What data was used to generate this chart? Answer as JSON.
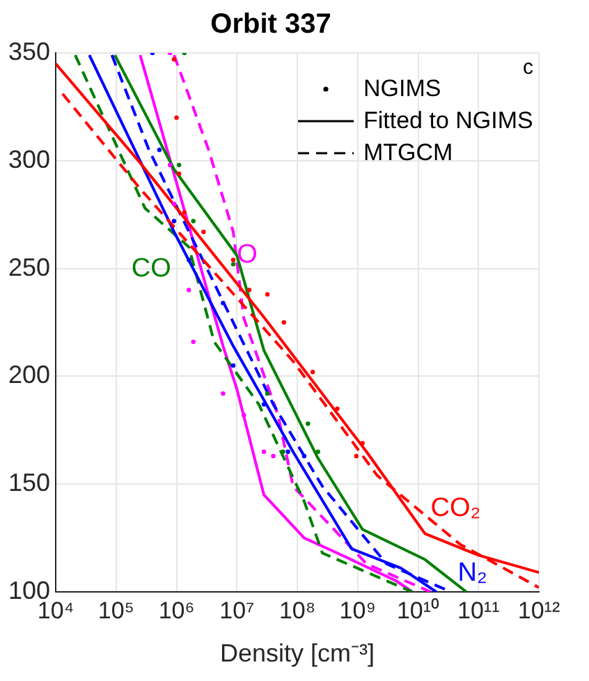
{
  "chart_data": {
    "type": "line",
    "title": "Orbit 337",
    "xlabel": "Density [cm⁻³]",
    "log": "x",
    "grid": true,
    "xlim": [
      10000,
      1000000000000
    ],
    "xticks": [
      {
        "value": 10000,
        "label": "10⁴"
      },
      {
        "value": 100000,
        "label": "10⁵"
      },
      {
        "value": 1000000,
        "label": "10⁶"
      },
      {
        "value": 10000000,
        "label": "10⁷"
      },
      {
        "value": 100000000,
        "label": "10⁸"
      },
      {
        "value": 1000000000,
        "label": "10⁹"
      },
      {
        "value": 10000000000,
        "label": "10¹⁰"
      },
      {
        "value": 100000000000,
        "label": "10¹¹"
      },
      {
        "value": 1000000000000,
        "label": "10¹²"
      }
    ],
    "ylim": [
      100,
      350
    ],
    "yticks": [
      100,
      150,
      200,
      250,
      300,
      350
    ],
    "series": [
      {
        "type": "scatter",
        "marker": "circle",
        "color": "#ff0000",
        "x": [
          910000.0,
          1000000.0,
          1100000.0,
          1350000.0,
          2800000.0,
          8700000.0,
          16000000.0,
          32000000.0,
          60000000.0,
          180000000.0,
          460000000.0,
          1200000000.0,
          950000000.0
        ],
        "values": [
          347,
          320,
          294,
          276,
          267,
          254,
          240,
          238,
          225,
          202,
          185,
          169,
          163
        ]
      },
      {
        "type": "line",
        "line_style": "solid",
        "color": "#ff0000",
        "x": [
          10000.0,
          250000.0,
          27000000.0,
          1400000000.0,
          13000000000.0,
          100000000000.0,
          1000000000000.0
        ],
        "values": [
          345,
          299,
          228,
          165,
          127,
          117,
          109
        ]
      },
      {
        "type": "line",
        "line_style": "dashed",
        "color": "#ff0000",
        "x": [
          13000.0,
          250000.0,
          85000000.0,
          2100000000.0,
          50000000000.0,
          1000000000000.0
        ],
        "values": [
          331,
          287,
          207,
          154,
          122,
          102
        ]
      },
      {
        "type": "scatter",
        "marker": "circle",
        "color": "#0000ff",
        "x": [
          400000.0,
          520000.0,
          910000.0,
          1600000.0,
          5900000.0,
          8700000.0,
          28000000.0,
          70000000.0,
          130000000.0
        ],
        "values": [
          350,
          305,
          272,
          254,
          234,
          205,
          187,
          165,
          163
        ]
      },
      {
        "type": "line",
        "line_style": "solid",
        "color": "#0000ff",
        "x": [
          36000.0,
          910000.0,
          8700000.0,
          28000000.0,
          85000000.0,
          790000000.0,
          5200000000.0,
          20000000000.0
        ],
        "values": [
          349,
          267,
          214,
          189,
          165,
          120,
          111,
          100
        ]
      },
      {
        "type": "line",
        "line_style": "dashed",
        "color": "#0000ff",
        "x": [
          85000.0,
          350000.0,
          40000000.0,
          260000000.0,
          3000000000.0,
          35000000000.0
        ],
        "values": [
          349,
          305,
          187,
          149,
          113,
          100
        ]
      },
      {
        "type": "scatter",
        "marker": "circle",
        "color": "#008000",
        "x": [
          1350000.0,
          1100000.0,
          1900000.0,
          8700000.0,
          32000000.0,
          150000000.0,
          220000000.0,
          58000000.0
        ],
        "values": [
          350,
          298,
          272,
          252,
          192,
          178,
          165,
          165
        ]
      },
      {
        "type": "line",
        "line_style": "solid",
        "color": "#008000",
        "x": [
          95000.0,
          910000.0,
          10000000.0,
          28000000.0,
          220000000.0,
          1200000000.0,
          13000000000.0,
          63000000000.0
        ],
        "values": [
          349,
          296,
          256,
          212,
          162,
          129,
          115,
          100
        ]
      },
      {
        "type": "line",
        "line_style": "dashed",
        "color": "#008000",
        "x": [
          21000.0,
          300000.0,
          1600000.0,
          4200000.0,
          23000000.0,
          130000000.0,
          260000000.0,
          8000000000.0
        ],
        "values": [
          349,
          278,
          260,
          216,
          187,
          142,
          118,
          100
        ]
      },
      {
        "type": "scatter",
        "marker": "circle",
        "color": "#ff00ff",
        "x": [
          780000.0,
          780000.0,
          910000.0,
          1600000.0,
          1900000.0,
          5900000.0,
          13000000.0,
          28000000.0,
          40000000.0
        ],
        "values": [
          350,
          298,
          280,
          240,
          216,
          192,
          182,
          165,
          163
        ]
      },
      {
        "type": "line",
        "line_style": "solid",
        "color": "#ff00ff",
        "x": [
          250000.0,
          5900000.0,
          10000000.0,
          28000000.0,
          130000000.0,
          460000000.0,
          4400000000.0,
          8000000000.0
        ],
        "values": [
          349,
          214,
          194,
          145,
          125,
          118,
          105,
          100
        ]
      },
      {
        "type": "line",
        "line_style": "dashed",
        "color": "#ff00ff",
        "x": [
          910000.0,
          3400000.0,
          8700000.0,
          13000000.0,
          48000000.0,
          85000000.0,
          1400000000.0,
          16000000000.0
        ],
        "values": [
          349,
          305,
          267,
          227,
          182,
          149,
          113,
          100
        ]
      }
    ],
    "annotations": [
      {
        "text": "CO₂",
        "x": 13000000000.0,
        "y": 127
      },
      {
        "text": "N₂",
        "x": 20000000000.0,
        "y": 100
      },
      {
        "text": "CO",
        "x": 1600000.0,
        "y": 260
      },
      {
        "text": "O",
        "x": 8700000.0,
        "y": 267
      },
      "NGIMS",
      "Fitted to NGIMS",
      "MTGCM",
      "c"
    ]
  }
}
